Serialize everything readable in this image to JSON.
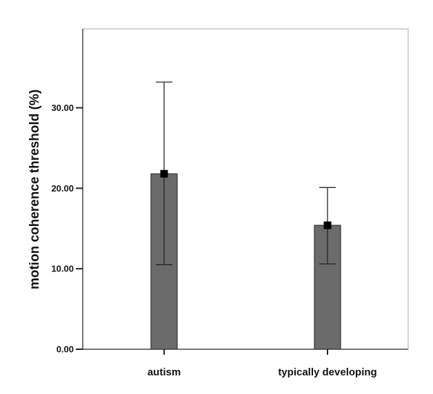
{
  "chart_data": {
    "type": "bar",
    "title": "",
    "xlabel": "",
    "ylabel": "motion coherence threshold (%)",
    "categories": [
      "autism",
      "typically developing"
    ],
    "values": [
      21.8,
      15.4
    ],
    "error_upper": [
      33.2,
      20.1
    ],
    "error_lower": [
      10.5,
      10.6
    ],
    "ylim": [
      0,
      39.8
    ],
    "yticks": [
      0,
      10,
      20,
      30
    ],
    "ytick_labels": [
      "0.00",
      "10.00",
      "20.00",
      "30.00"
    ],
    "grid": false,
    "bar_color": "#6b6b6b",
    "marker_color": "#000000"
  }
}
